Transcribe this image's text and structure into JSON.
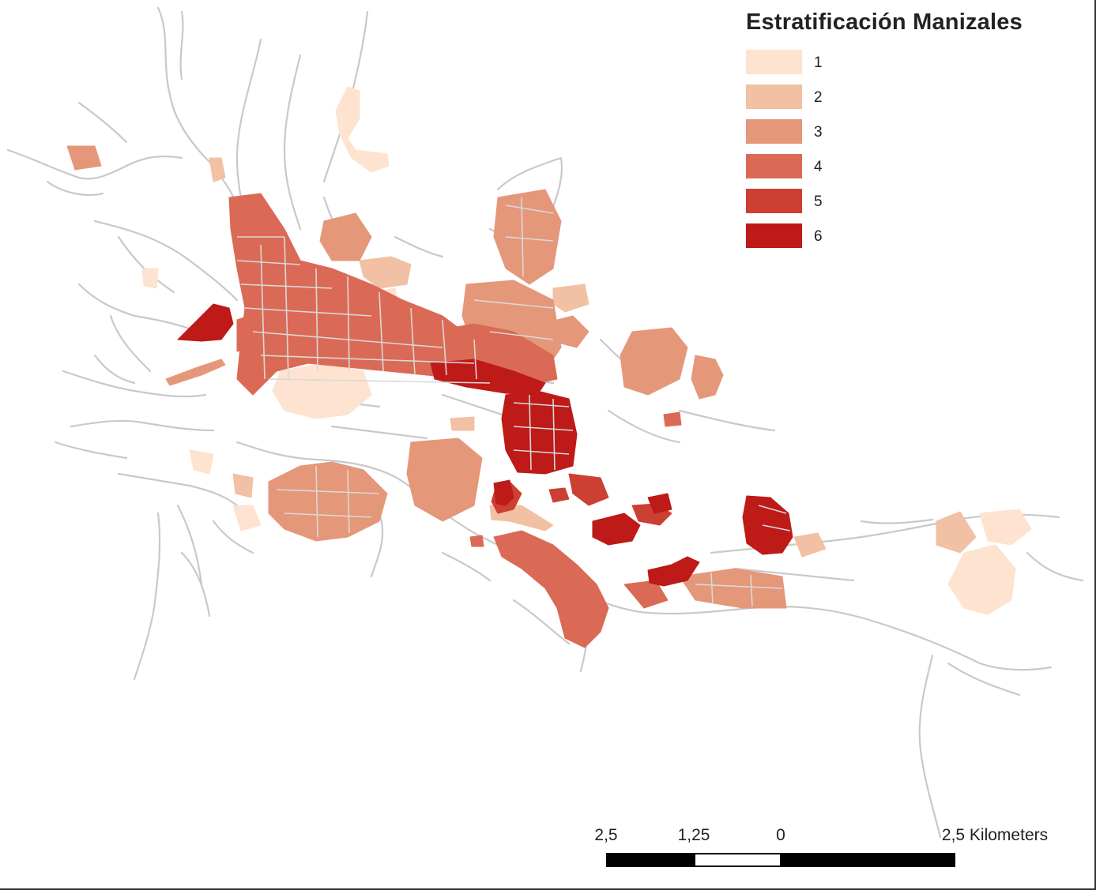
{
  "legend": {
    "title": "Estratificación Manizales",
    "items": [
      {
        "label": "1",
        "color": "#fde3d0"
      },
      {
        "label": "2",
        "color": "#f2c0a3"
      },
      {
        "label": "3",
        "color": "#e5977a"
      },
      {
        "label": "4",
        "color": "#da6a55"
      },
      {
        "label": "5",
        "color": "#cc3f32"
      },
      {
        "label": "6",
        "color": "#bd1a18"
      }
    ]
  },
  "scale_bar": {
    "labels": [
      "2,5",
      "1,25",
      "0",
      "2,5 Kilometers"
    ]
  },
  "map": {
    "road_color": "#c9c9c9",
    "background": "#ffffff"
  }
}
